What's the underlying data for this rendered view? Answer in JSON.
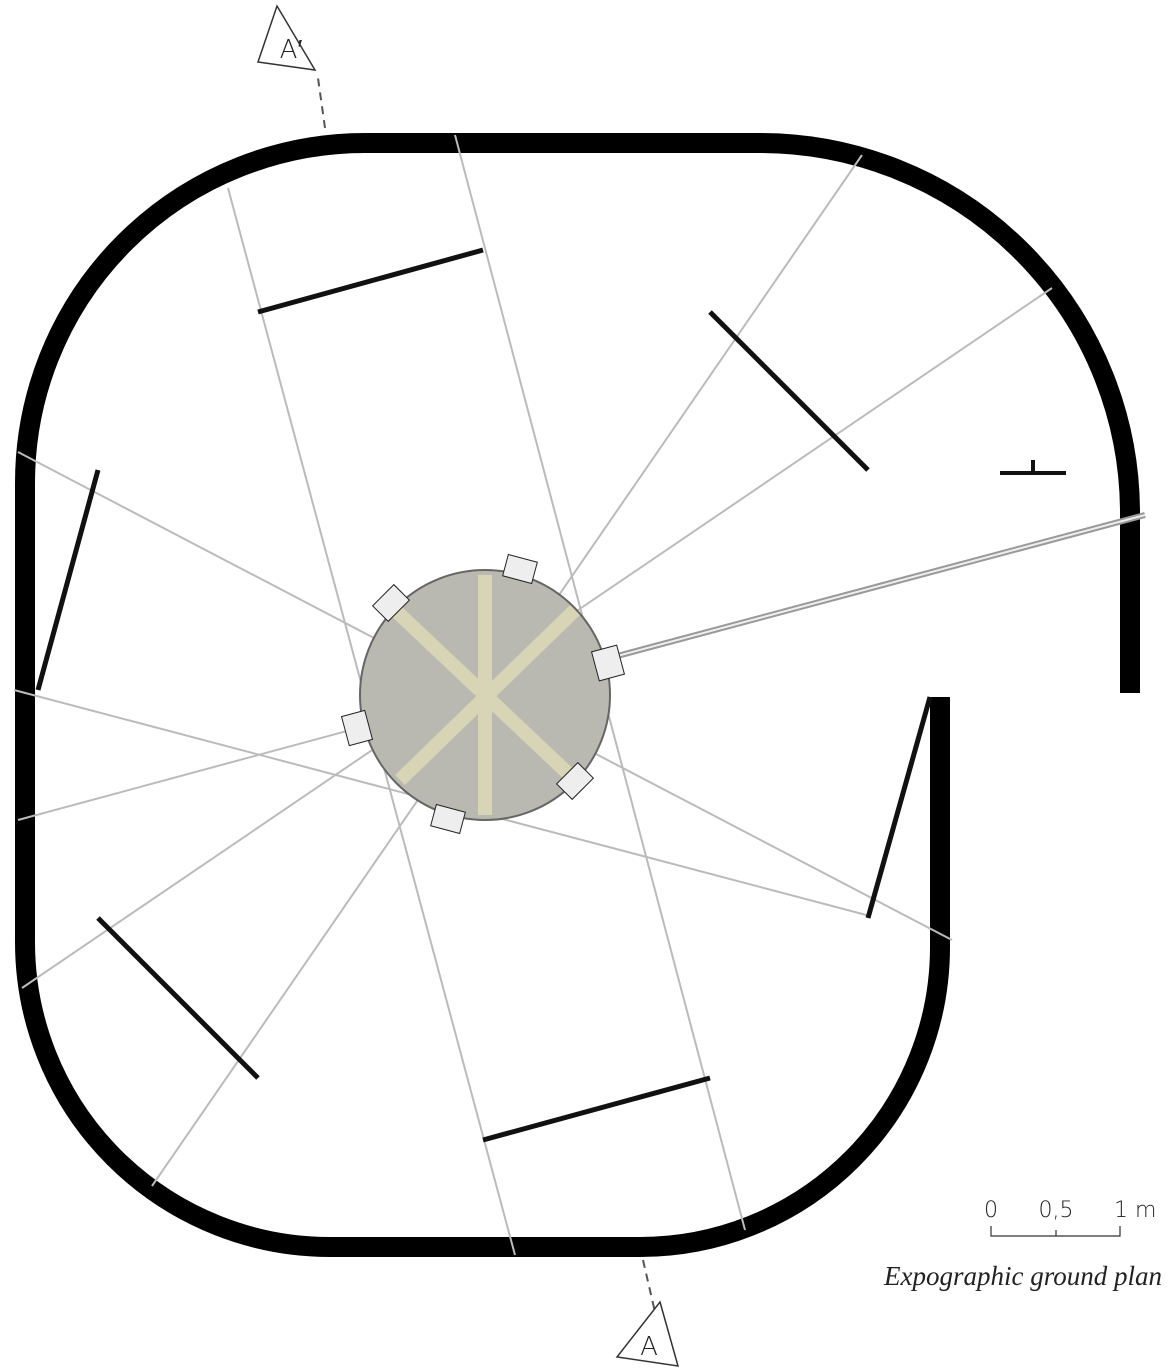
{
  "section_marks": {
    "top": "A′",
    "bottom": "A"
  },
  "scale_bar": {
    "labels": [
      "0",
      "0,5",
      "1 m"
    ]
  },
  "caption": "Expographic ground plan"
}
